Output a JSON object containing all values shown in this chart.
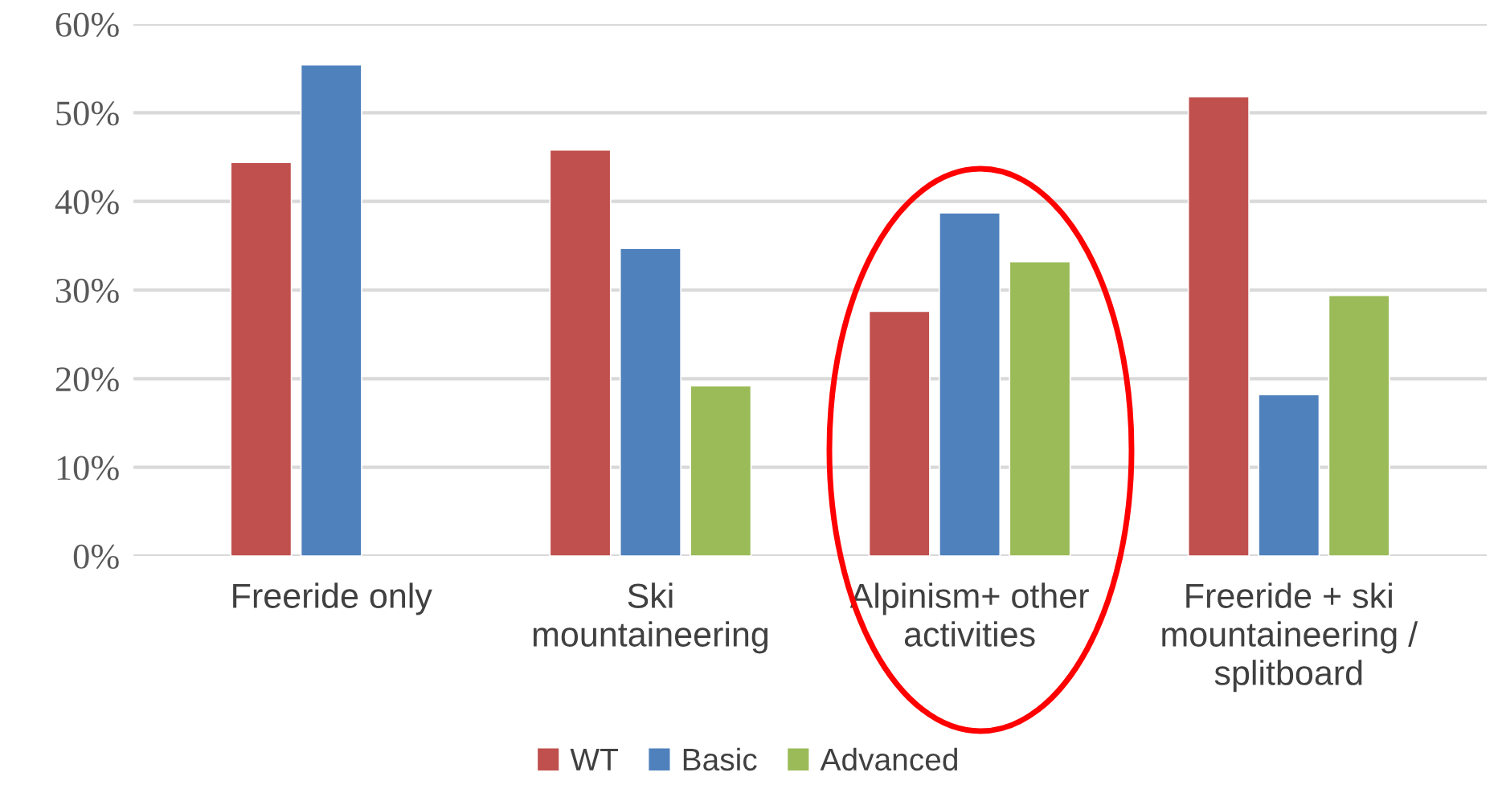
{
  "chart_data": {
    "type": "bar",
    "categories": [
      "Freeride only",
      "Ski mountaineering",
      "Alpinism+ other activities",
      "Freeride + ski mountaineering / splitboard"
    ],
    "series": [
      {
        "name": "WT",
        "color": "#c0504d",
        "values": [
          44.4,
          45.8,
          27.6,
          51.8
        ]
      },
      {
        "name": "Basic",
        "color": "#4f81bd",
        "values": [
          55.4,
          34.7,
          38.7,
          18.2
        ]
      },
      {
        "name": "Advanced",
        "color": "#9bbb59",
        "values": [
          null,
          19.2,
          33.2,
          29.4
        ]
      }
    ],
    "ylim": [
      0,
      60
    ],
    "yticks": [
      {
        "value": 0,
        "label": "0%"
      },
      {
        "value": 10,
        "label": "10%"
      },
      {
        "value": 20,
        "label": "20%"
      },
      {
        "value": 30,
        "label": "30%"
      },
      {
        "value": 40,
        "label": "40%"
      },
      {
        "value": 50,
        "label": "50%"
      },
      {
        "value": 60,
        "label": "60%"
      }
    ],
    "grid": "y",
    "legend": "bottom"
  }
}
